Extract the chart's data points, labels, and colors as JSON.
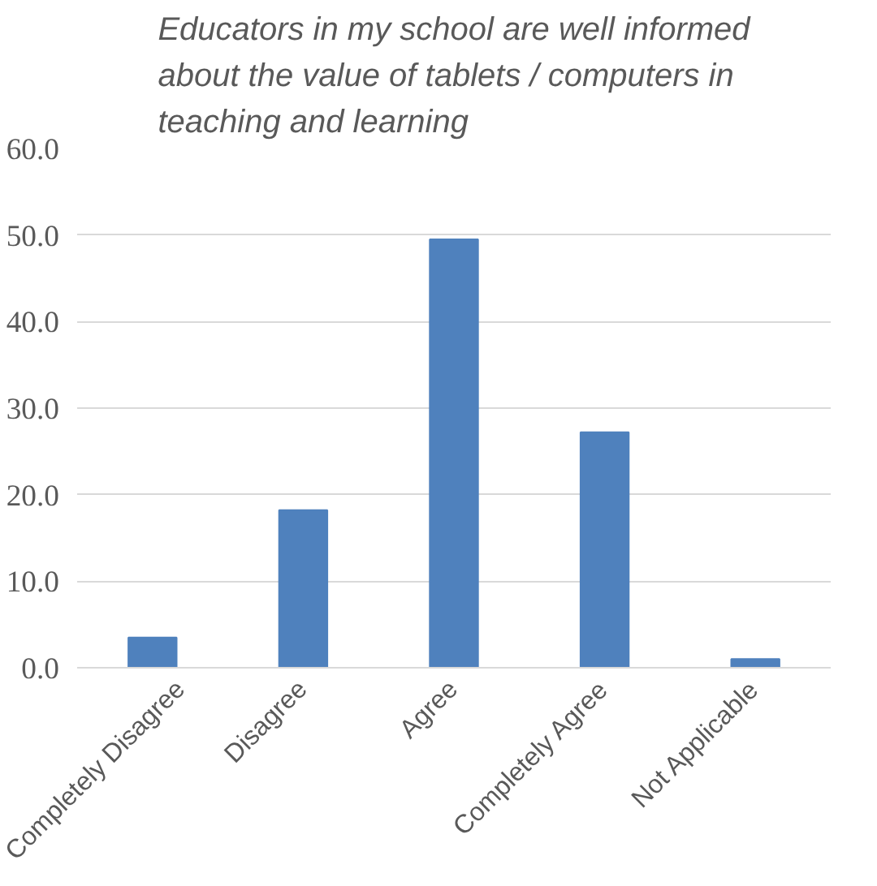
{
  "chart_data": {
    "type": "bar",
    "title": "Educators in my school are well informed about the value of tablets / computers in teaching and learning",
    "categories": [
      "Completely Disagree",
      "Disagree",
      "Agree",
      "Completely Agree",
      "Not Applicable"
    ],
    "values": [
      3.5,
      18.2,
      49.5,
      27.2,
      1.0
    ],
    "color": "#4f81bd",
    "ylim": [
      0,
      60
    ],
    "yticks": [
      {
        "value": 0,
        "label": "0.0"
      },
      {
        "value": 10,
        "label": "10.0"
      },
      {
        "value": 20,
        "label": "20.0"
      },
      {
        "value": 30,
        "label": "30.0"
      },
      {
        "value": 40,
        "label": "40.0"
      },
      {
        "value": 50,
        "label": "50.0"
      },
      {
        "value": 60,
        "label": "60.0"
      }
    ],
    "grid": "y"
  }
}
